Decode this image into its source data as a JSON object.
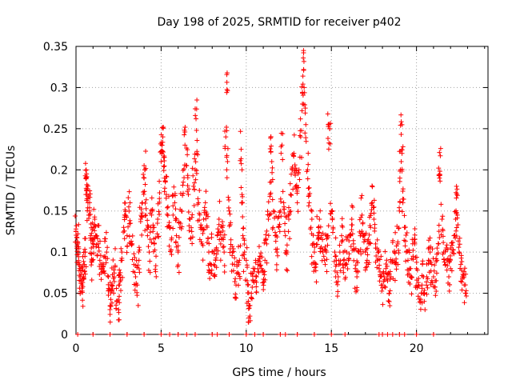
{
  "chart_data": {
    "type": "scatter",
    "title": "Day 198 of 2025, SRMTID for receiver p402",
    "xlabel": "GPS time / hours",
    "ylabel": "SRMTID / TECUs",
    "xlim": [
      0,
      24.2
    ],
    "ylim": [
      0,
      0.35
    ],
    "xticks": [
      0,
      5,
      10,
      15,
      20
    ],
    "xtick_labels": [
      "0",
      "5",
      "10",
      "15",
      "20"
    ],
    "yticks": [
      0,
      0.05,
      0.1,
      0.15,
      0.2,
      0.25,
      0.3,
      0.35
    ],
    "ytick_labels": [
      "0",
      "0.05",
      "0.1",
      "0.15",
      "0.2",
      "0.25",
      "0.3",
      "0.35"
    ],
    "grid": true,
    "marker": "plus",
    "series": [
      {
        "name": "SRMTID",
        "color": "#ff0000",
        "points": [
          [
            0.0,
            0.125
          ],
          [
            0.05,
            0.118
          ],
          [
            0.1,
            0.11
          ],
          [
            0.15,
            0.098
          ],
          [
            0.2,
            0.085
          ],
          [
            0.25,
            0.07
          ],
          [
            0.3,
            0.065
          ],
          [
            0.35,
            0.06
          ],
          [
            0.4,
            0.058
          ],
          [
            0.45,
            0.07
          ],
          [
            0.5,
            0.085
          ],
          [
            0.55,
            0.1
          ],
          [
            0.6,
            0.2
          ],
          [
            0.62,
            0.195
          ],
          [
            0.65,
            0.17
          ],
          [
            0.7,
            0.16
          ],
          [
            0.75,
            0.145
          ],
          [
            0.8,
            0.15
          ],
          [
            0.85,
            0.12
          ],
          [
            0.9,
            0.105
          ],
          [
            0.95,
            0.09
          ],
          [
            1.0,
            0.115
          ],
          [
            1.05,
            0.13
          ],
          [
            1.1,
            0.14
          ],
          [
            1.2,
            0.12
          ],
          [
            1.3,
            0.11
          ],
          [
            1.4,
            0.09
          ],
          [
            1.5,
            0.075
          ],
          [
            1.6,
            0.082
          ],
          [
            1.7,
            0.095
          ],
          [
            1.8,
            0.1
          ],
          [
            1.9,
            0.07
          ],
          [
            2.0,
            0.055
          ],
          [
            2.05,
            0.034
          ],
          [
            2.1,
            0.06
          ],
          [
            2.2,
            0.068
          ],
          [
            2.3,
            0.082
          ],
          [
            2.4,
            0.04
          ],
          [
            2.5,
            0.03
          ],
          [
            2.55,
            0.06
          ],
          [
            2.6,
            0.075
          ],
          [
            2.7,
            0.09
          ],
          [
            2.8,
            0.13
          ],
          [
            2.9,
            0.145
          ],
          [
            3.0,
            0.12
          ],
          [
            3.1,
            0.155
          ],
          [
            3.2,
            0.135
          ],
          [
            3.3,
            0.11
          ],
          [
            3.4,
            0.085
          ],
          [
            3.5,
            0.07
          ],
          [
            3.6,
            0.06
          ],
          [
            3.7,
            0.09
          ],
          [
            3.8,
            0.14
          ],
          [
            3.9,
            0.16
          ],
          [
            4.0,
            0.19
          ],
          [
            4.05,
            0.2
          ],
          [
            4.1,
            0.145
          ],
          [
            4.2,
            0.12
          ],
          [
            4.3,
            0.1
          ],
          [
            4.4,
            0.13
          ],
          [
            4.5,
            0.15
          ],
          [
            4.6,
            0.11
          ],
          [
            4.7,
            0.095
          ],
          [
            4.8,
            0.14
          ],
          [
            4.9,
            0.165
          ],
          [
            5.0,
            0.21
          ],
          [
            5.05,
            0.23
          ],
          [
            5.1,
            0.24
          ],
          [
            5.15,
            0.215
          ],
          [
            5.2,
            0.19
          ],
          [
            5.3,
            0.17
          ],
          [
            5.4,
            0.155
          ],
          [
            5.5,
            0.13
          ],
          [
            5.6,
            0.115
          ],
          [
            5.7,
            0.145
          ],
          [
            5.8,
            0.16
          ],
          [
            5.9,
            0.12
          ],
          [
            6.0,
            0.1
          ],
          [
            6.1,
            0.13
          ],
          [
            6.2,
            0.15
          ],
          [
            6.3,
            0.185
          ],
          [
            6.4,
            0.23
          ],
          [
            6.5,
            0.205
          ],
          [
            6.6,
            0.17
          ],
          [
            6.7,
            0.14
          ],
          [
            6.8,
            0.125
          ],
          [
            6.9,
            0.18
          ],
          [
            7.0,
            0.2
          ],
          [
            7.05,
            0.262
          ],
          [
            7.1,
            0.22
          ],
          [
            7.2,
            0.16
          ],
          [
            7.3,
            0.13
          ],
          [
            7.4,
            0.11
          ],
          [
            7.5,
            0.14
          ],
          [
            7.6,
            0.16
          ],
          [
            7.7,
            0.13
          ],
          [
            7.8,
            0.1
          ],
          [
            7.9,
            0.085
          ],
          [
            8.0,
            0.1
          ],
          [
            8.1,
            0.085
          ],
          [
            8.2,
            0.09
          ],
          [
            8.3,
            0.12
          ],
          [
            8.4,
            0.14
          ],
          [
            8.5,
            0.11
          ],
          [
            8.6,
            0.13
          ],
          [
            8.7,
            0.1
          ],
          [
            8.8,
            0.24
          ],
          [
            8.85,
            0.294
          ],
          [
            8.9,
            0.21
          ],
          [
            9.0,
            0.15
          ],
          [
            9.1,
            0.115
          ],
          [
            9.2,
            0.1
          ],
          [
            9.3,
            0.085
          ],
          [
            9.4,
            0.06
          ],
          [
            9.5,
            0.075
          ],
          [
            9.6,
            0.09
          ],
          [
            9.7,
            0.225
          ],
          [
            9.75,
            0.17
          ],
          [
            9.8,
            0.12
          ],
          [
            9.9,
            0.1
          ],
          [
            10.0,
            0.09
          ],
          [
            10.1,
            0.06
          ],
          [
            10.15,
            0.02
          ],
          [
            10.2,
            0.035
          ],
          [
            10.3,
            0.05
          ],
          [
            10.4,
            0.065
          ],
          [
            10.5,
            0.08
          ],
          [
            10.6,
            0.07
          ],
          [
            10.7,
            0.085
          ],
          [
            10.8,
            0.095
          ],
          [
            10.9,
            0.08
          ],
          [
            11.0,
            0.075
          ],
          [
            11.1,
            0.09
          ],
          [
            11.2,
            0.11
          ],
          [
            11.3,
            0.14
          ],
          [
            11.4,
            0.17
          ],
          [
            11.45,
            0.24
          ],
          [
            11.5,
            0.21
          ],
          [
            11.6,
            0.15
          ],
          [
            11.7,
            0.12
          ],
          [
            11.8,
            0.1
          ],
          [
            11.9,
            0.13
          ],
          [
            12.0,
            0.15
          ],
          [
            12.1,
            0.23
          ],
          [
            12.2,
            0.16
          ],
          [
            12.3,
            0.12
          ],
          [
            12.4,
            0.1
          ],
          [
            12.5,
            0.14
          ],
          [
            12.6,
            0.17
          ],
          [
            12.7,
            0.2
          ],
          [
            12.8,
            0.22
          ],
          [
            12.9,
            0.18
          ],
          [
            13.0,
            0.16
          ],
          [
            13.1,
            0.2
          ],
          [
            13.2,
            0.24
          ],
          [
            13.3,
            0.28
          ],
          [
            13.35,
            0.336
          ],
          [
            13.4,
            0.3
          ],
          [
            13.5,
            0.255
          ],
          [
            13.6,
            0.2
          ],
          [
            13.7,
            0.16
          ],
          [
            13.8,
            0.13
          ],
          [
            13.9,
            0.11
          ],
          [
            14.0,
            0.1
          ],
          [
            14.1,
            0.085
          ],
          [
            14.2,
            0.12
          ],
          [
            14.3,
            0.14
          ],
          [
            14.4,
            0.12
          ],
          [
            14.5,
            0.1
          ],
          [
            14.6,
            0.09
          ],
          [
            14.7,
            0.1
          ],
          [
            14.8,
            0.12
          ],
          [
            14.85,
            0.255
          ],
          [
            14.9,
            0.25
          ],
          [
            15.0,
            0.15
          ],
          [
            15.1,
            0.13
          ],
          [
            15.2,
            0.1
          ],
          [
            15.3,
            0.085
          ],
          [
            15.4,
            0.07
          ],
          [
            15.5,
            0.1
          ],
          [
            15.6,
            0.12
          ],
          [
            15.7,
            0.1
          ],
          [
            15.8,
            0.085
          ],
          [
            15.9,
            0.1
          ],
          [
            16.0,
            0.09
          ],
          [
            16.1,
            0.12
          ],
          [
            16.2,
            0.14
          ],
          [
            16.3,
            0.11
          ],
          [
            16.4,
            0.08
          ],
          [
            16.5,
            0.07
          ],
          [
            16.6,
            0.1
          ],
          [
            16.7,
            0.12
          ],
          [
            16.8,
            0.145
          ],
          [
            16.9,
            0.12
          ],
          [
            17.0,
            0.1
          ],
          [
            17.1,
            0.09
          ],
          [
            17.2,
            0.11
          ],
          [
            17.3,
            0.13
          ],
          [
            17.4,
            0.16
          ],
          [
            17.5,
            0.14
          ],
          [
            17.6,
            0.11
          ],
          [
            17.7,
            0.09
          ],
          [
            17.8,
            0.08
          ],
          [
            17.9,
            0.07
          ],
          [
            18.0,
            0.06
          ],
          [
            18.1,
            0.07
          ],
          [
            18.2,
            0.08
          ],
          [
            18.3,
            0.065
          ],
          [
            18.4,
            0.05
          ],
          [
            18.5,
            0.07
          ],
          [
            18.6,
            0.09
          ],
          [
            18.7,
            0.1
          ],
          [
            18.8,
            0.085
          ],
          [
            18.9,
            0.11
          ],
          [
            19.0,
            0.15
          ],
          [
            19.05,
            0.2
          ],
          [
            19.1,
            0.243
          ],
          [
            19.15,
            0.22
          ],
          [
            19.2,
            0.16
          ],
          [
            19.3,
            0.13
          ],
          [
            19.4,
            0.1
          ],
          [
            19.5,
            0.09
          ],
          [
            19.6,
            0.08
          ],
          [
            19.7,
            0.07
          ],
          [
            19.8,
            0.095
          ],
          [
            19.9,
            0.11
          ],
          [
            20.0,
            0.08
          ],
          [
            20.1,
            0.06
          ],
          [
            20.2,
            0.04
          ],
          [
            20.3,
            0.05
          ],
          [
            20.4,
            0.07
          ],
          [
            20.5,
            0.03
          ],
          [
            20.6,
            0.07
          ],
          [
            20.7,
            0.09
          ],
          [
            20.8,
            0.1
          ],
          [
            20.9,
            0.085
          ],
          [
            21.0,
            0.07
          ],
          [
            21.1,
            0.065
          ],
          [
            21.2,
            0.09
          ],
          [
            21.3,
            0.11
          ],
          [
            21.35,
            0.19
          ],
          [
            21.4,
            0.217
          ],
          [
            21.5,
            0.14
          ],
          [
            21.6,
            0.1
          ],
          [
            21.7,
            0.085
          ],
          [
            21.8,
            0.09
          ],
          [
            21.9,
            0.07
          ],
          [
            22.0,
            0.08
          ],
          [
            22.1,
            0.1
          ],
          [
            22.2,
            0.12
          ],
          [
            22.3,
            0.14
          ],
          [
            22.35,
            0.18
          ],
          [
            22.4,
            0.145
          ],
          [
            22.5,
            0.1
          ],
          [
            22.6,
            0.085
          ],
          [
            22.7,
            0.07
          ],
          [
            22.8,
            0.06
          ],
          [
            22.9,
            0.05
          ]
        ],
        "zero_points_x": [
          0.1,
          1.0,
          2.0,
          3.0,
          4.0,
          5.0,
          5.5,
          6.0,
          6.5,
          7.0,
          8.0,
          8.3,
          9.0,
          10.0,
          10.5,
          11.0,
          12.0,
          12.3,
          13.0,
          14.0,
          15.0,
          15.8,
          17.8,
          18.0,
          18.3,
          18.6,
          19.0,
          19.3,
          20.0,
          21.0
        ]
      }
    ]
  }
}
